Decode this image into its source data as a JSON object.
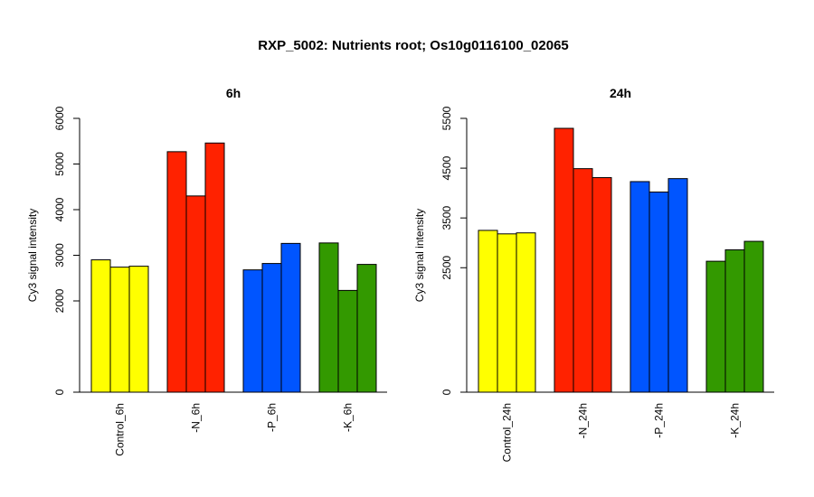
{
  "title": "RXP_5002: Nutrients root; Os10g0116100_02065",
  "chart_data": [
    {
      "type": "bar",
      "title": "6h",
      "ylabel": "Cy3 signal intensity",
      "xlabel": "",
      "ylim": [
        0,
        6000
      ],
      "yticks": [
        0,
        2000,
        3000,
        4000,
        5000,
        6000
      ],
      "grid": false,
      "categories": [
        "Control_6h",
        "-N_6h",
        "-P_6h",
        "-K_6h"
      ],
      "colors": [
        "#ffff00",
        "#ff2200",
        "#0055ff",
        "#339900"
      ],
      "groups": [
        {
          "category": "Control_6h",
          "values": [
            2900,
            2740,
            2760
          ]
        },
        {
          "category": "-N_6h",
          "values": [
            5270,
            4300,
            5460
          ]
        },
        {
          "category": "-P_6h",
          "values": [
            2680,
            2820,
            3260
          ]
        },
        {
          "category": "-K_6h",
          "values": [
            3270,
            2230,
            2800
          ]
        }
      ]
    },
    {
      "type": "bar",
      "title": "24h",
      "ylabel": "Cy3 signal intensity",
      "xlabel": "",
      "ylim": [
        0,
        5500
      ],
      "yticks": [
        0,
        2500,
        3500,
        4500,
        5500
      ],
      "grid": false,
      "categories": [
        "Control_24h",
        "-N_24h",
        "-P_24h",
        "-K_24h"
      ],
      "colors": [
        "#ffff00",
        "#ff2200",
        "#0055ff",
        "#339900"
      ],
      "groups": [
        {
          "category": "Control_24h",
          "values": [
            3250,
            3180,
            3200
          ]
        },
        {
          "category": "-N_24h",
          "values": [
            5300,
            4490,
            4310
          ]
        },
        {
          "category": "-P_24h",
          "values": [
            4230,
            4020,
            4290
          ]
        },
        {
          "category": "-K_24h",
          "values": [
            2630,
            2860,
            3030
          ]
        }
      ]
    }
  ]
}
